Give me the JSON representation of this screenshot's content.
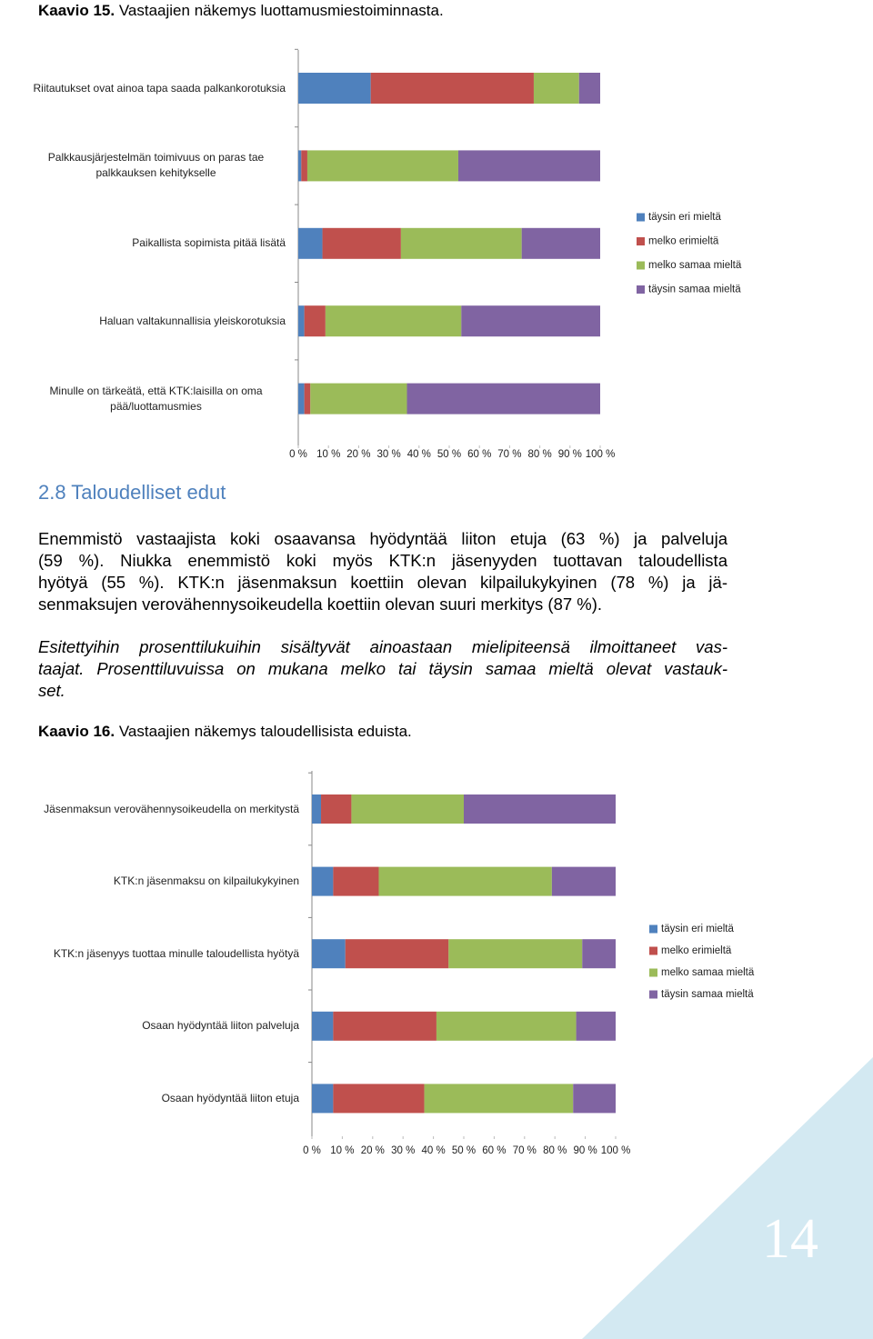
{
  "caption_1": {
    "label": "Kaavio 15.",
    "text": "Vastaajien näkemys luottamusmiestoiminnasta."
  },
  "heading": "2.8 Taloudelliset edut",
  "paragraphs": [
    {
      "lines": [
        "Enemmistö vastaajista koki osaavansa hyödyntää liiton etuja (63 %) ja palveluja",
        "(59 %). Niukka enemmistö koki myös KTK:n jäsenyyden tuottavan taloudellista",
        "hyötyä (55 %). KTK:n jäsenmaksun koettiin olevan kilpailukykyinen (78 %) ja jä-",
        "senmaksujen verovähennysoikeudella koettiin olevan suuri merkitys (87 %)."
      ]
    },
    {
      "lines": [
        "Esitettyihin prosenttilukuihin sisältyvät ainoastaan mielipiteensä ilmoittaneet vas-",
        "taajat. Prosenttiluvuissa on mukana melko tai täysin samaa mieltä olevat vastauk-",
        "set."
      ]
    }
  ],
  "caption_2": {
    "label": "Kaavio 16.",
    "text": "Vastaajien näkemys taloudellisista eduista."
  },
  "page_number": "14",
  "chart_data": [
    {
      "type": "bar",
      "orientation": "horizontal",
      "stacked": true,
      "legend": "right",
      "grid": false,
      "categories": [
        "Riitautukset ovat ainoa tapa saada palkankorotuksia",
        "Palkkausjärjestelmän toimivuus on paras tae palkkauksen kehitykselle",
        "Paikallista sopimista pitää lisätä",
        "Haluan valtakunnallisia yleiskorotuksia",
        "Minulle on tärkeätä, että KTK:laisilla on oma pää/luottamusmies"
      ],
      "series": [
        {
          "name": "täysin eri mieltä",
          "color": "#4f81bd",
          "values": [
            24,
            1,
            8,
            2,
            2
          ]
        },
        {
          "name": "melko erimieltä",
          "color": "#c0504d",
          "values": [
            54,
            2,
            26,
            7,
            2
          ]
        },
        {
          "name": "melko samaa mieltä",
          "color": "#9bbb59",
          "values": [
            15,
            50,
            40,
            45,
            32
          ]
        },
        {
          "name": "täysin samaa mieltä",
          "color": "#8064a2",
          "values": [
            7,
            47,
            26,
            46,
            64
          ]
        }
      ],
      "xlim": [
        0,
        100
      ],
      "xticks": [
        {
          "value": 0,
          "label": "0 %"
        },
        {
          "value": 10,
          "label": "10 %"
        },
        {
          "value": 20,
          "label": "20 %"
        },
        {
          "value": 30,
          "label": "30 %"
        },
        {
          "value": 40,
          "label": "40 %"
        },
        {
          "value": 50,
          "label": "50 %"
        },
        {
          "value": 60,
          "label": "60 %"
        },
        {
          "value": 70,
          "label": "70 %"
        },
        {
          "value": 80,
          "label": "80 %"
        },
        {
          "value": 90,
          "label": "90 %"
        },
        {
          "value": 100,
          "label": "100 %"
        }
      ]
    },
    {
      "type": "bar",
      "orientation": "horizontal",
      "stacked": true,
      "legend": "right",
      "grid": false,
      "categories": [
        "Jäsenmaksun verovähennysoikeudella on merkitystä",
        "KTK:n jäsenmaksu on kilpailukykyinen",
        "KTK:n jäsenyys tuottaa minulle taloudellista hyötyä",
        "Osaan hyödyntää liiton palveluja",
        "Osaan hyödyntää liiton etuja"
      ],
      "series": [
        {
          "name": "täysin eri mieltä",
          "color": "#4f81bd",
          "values": [
            3,
            7,
            11,
            7,
            7
          ]
        },
        {
          "name": "melko erimieltä",
          "color": "#c0504d",
          "values": [
            10,
            15,
            34,
            34,
            30
          ]
        },
        {
          "name": "melko samaa mieltä",
          "color": "#9bbb59",
          "values": [
            37,
            57,
            44,
            46,
            49
          ]
        },
        {
          "name": "täysin samaa mieltä",
          "color": "#8064a2",
          "values": [
            50,
            21,
            11,
            13,
            14
          ]
        }
      ],
      "xlim": [
        0,
        100
      ],
      "xticks": [
        {
          "value": 0,
          "label": "0 %"
        },
        {
          "value": 10,
          "label": "10 %"
        },
        {
          "value": 20,
          "label": "20 %"
        },
        {
          "value": 30,
          "label": "30 %"
        },
        {
          "value": 40,
          "label": "40 %"
        },
        {
          "value": 50,
          "label": "50 %"
        },
        {
          "value": 60,
          "label": "60 %"
        },
        {
          "value": 70,
          "label": "70 %"
        },
        {
          "value": 80,
          "label": "80 %"
        },
        {
          "value": 90,
          "label": "90 %"
        },
        {
          "value": 100,
          "label": "100 %"
        }
      ]
    }
  ]
}
